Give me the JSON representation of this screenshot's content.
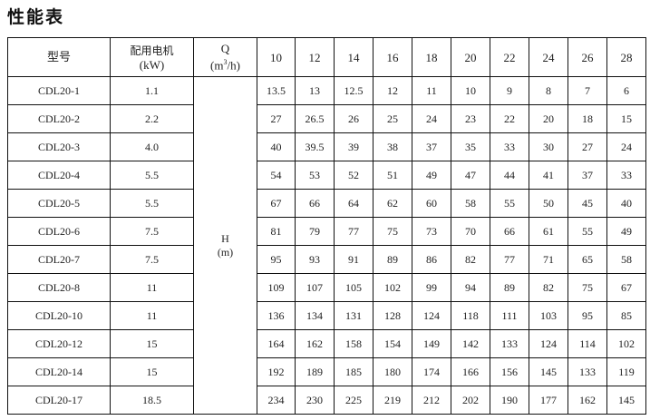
{
  "title": "性能表",
  "header": {
    "model": "型号",
    "motor_line1": "配用电机",
    "motor_line2": "(kW)",
    "q_label": "Q",
    "q_unit_pre": "(m",
    "q_unit_sup": "3",
    "q_unit_post": "/h)",
    "h_label": "H",
    "h_unit": "(m)",
    "flows": [
      "10",
      "12",
      "14",
      "16",
      "18",
      "20",
      "22",
      "24",
      "26",
      "28"
    ]
  },
  "rows": [
    {
      "model": "CDL20-1",
      "motor": "1.1",
      "heads": [
        "13.5",
        "13",
        "12.5",
        "12",
        "11",
        "10",
        "9",
        "8",
        "7",
        "6"
      ]
    },
    {
      "model": "CDL20-2",
      "motor": "2.2",
      "heads": [
        "27",
        "26.5",
        "26",
        "25",
        "24",
        "23",
        "22",
        "20",
        "18",
        "15"
      ]
    },
    {
      "model": "CDL20-3",
      "motor": "4.0",
      "heads": [
        "40",
        "39.5",
        "39",
        "38",
        "37",
        "35",
        "33",
        "30",
        "27",
        "24"
      ]
    },
    {
      "model": "CDL20-4",
      "motor": "5.5",
      "heads": [
        "54",
        "53",
        "52",
        "51",
        "49",
        "47",
        "44",
        "41",
        "37",
        "33"
      ]
    },
    {
      "model": "CDL20-5",
      "motor": "5.5",
      "heads": [
        "67",
        "66",
        "64",
        "62",
        "60",
        "58",
        "55",
        "50",
        "45",
        "40"
      ]
    },
    {
      "model": "CDL20-6",
      "motor": "7.5",
      "heads": [
        "81",
        "79",
        "77",
        "75",
        "73",
        "70",
        "66",
        "61",
        "55",
        "49"
      ]
    },
    {
      "model": "CDL20-7",
      "motor": "7.5",
      "heads": [
        "95",
        "93",
        "91",
        "89",
        "86",
        "82",
        "77",
        "71",
        "65",
        "58"
      ]
    },
    {
      "model": "CDL20-8",
      "motor": "11",
      "heads": [
        "109",
        "107",
        "105",
        "102",
        "99",
        "94",
        "89",
        "82",
        "75",
        "67"
      ]
    },
    {
      "model": "CDL20-10",
      "motor": "11",
      "heads": [
        "136",
        "134",
        "131",
        "128",
        "124",
        "118",
        "111",
        "103",
        "95",
        "85"
      ]
    },
    {
      "model": "CDL20-12",
      "motor": "15",
      "heads": [
        "164",
        "162",
        "158",
        "154",
        "149",
        "142",
        "133",
        "124",
        "114",
        "102"
      ]
    },
    {
      "model": "CDL20-14",
      "motor": "15",
      "heads": [
        "192",
        "189",
        "185",
        "180",
        "174",
        "166",
        "156",
        "145",
        "133",
        "119"
      ]
    },
    {
      "model": "CDL20-17",
      "motor": "18.5",
      "heads": [
        "234",
        "230",
        "225",
        "219",
        "212",
        "202",
        "190",
        "177",
        "162",
        "145"
      ]
    }
  ]
}
